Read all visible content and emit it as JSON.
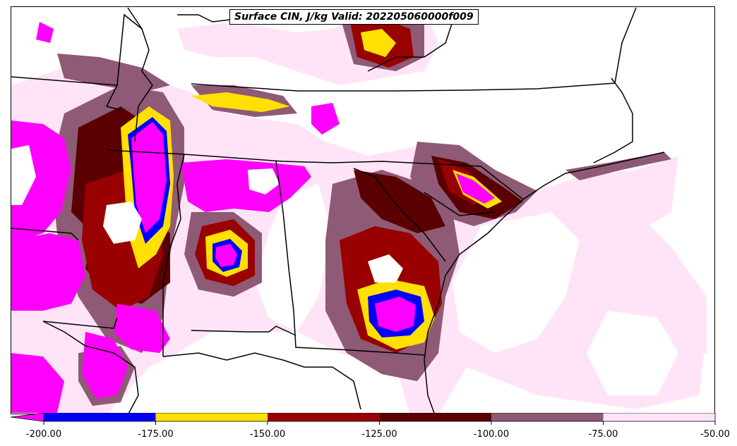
{
  "title": "Surface CIN, J/kg Valid: 202205060000f009",
  "colorbar": {
    "colors": [
      "#0000ff",
      "#ffe000",
      "#990000",
      "#5a0000",
      "#8f5a75",
      "#ffe4f7"
    ],
    "under_color": "#ff00ff",
    "tick_labels": [
      "-200.00",
      "-175.00",
      "-150.00",
      "-125.00",
      "-100.00",
      "-75.00",
      "-50.00"
    ]
  },
  "map_colors": {
    "magenta": "#ff00ff",
    "blue": "#0000ff",
    "yellow": "#ffe000",
    "dark_red": "#990000",
    "maroon": "#5a0000",
    "mauve": "#8f5a75",
    "pink": "#ffe4f7",
    "boundary": "#000000"
  }
}
